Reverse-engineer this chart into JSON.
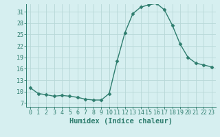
{
  "x": [
    0,
    1,
    2,
    3,
    4,
    5,
    6,
    7,
    8,
    9,
    10,
    11,
    12,
    13,
    14,
    15,
    16,
    17,
    18,
    19,
    20,
    21,
    22,
    23
  ],
  "y": [
    11,
    9.5,
    9.2,
    8.8,
    9.0,
    8.8,
    8.5,
    8.0,
    7.8,
    7.8,
    9.5,
    18.0,
    25.5,
    30.5,
    32.2,
    32.8,
    33.2,
    31.5,
    27.5,
    22.5,
    19.0,
    17.5,
    17.0,
    16.5
  ],
  "line_color": "#2e7d6e",
  "marker": "D",
  "marker_size": 2.5,
  "bg_color": "#d6eff0",
  "grid_color": "#b8d8d8",
  "xlabel": "Humidex (Indice chaleur)",
  "xlim": [
    -0.5,
    23.5
  ],
  "ylim": [
    6,
    33
  ],
  "yticks": [
    7,
    10,
    13,
    16,
    19,
    22,
    25,
    28,
    31
  ],
  "xticks": [
    0,
    1,
    2,
    3,
    4,
    5,
    6,
    7,
    8,
    9,
    10,
    11,
    12,
    13,
    14,
    15,
    16,
    17,
    18,
    19,
    20,
    21,
    22,
    23
  ],
  "font_color": "#2e7d6e",
  "font_size": 6.0,
  "label_font_size": 7.5
}
